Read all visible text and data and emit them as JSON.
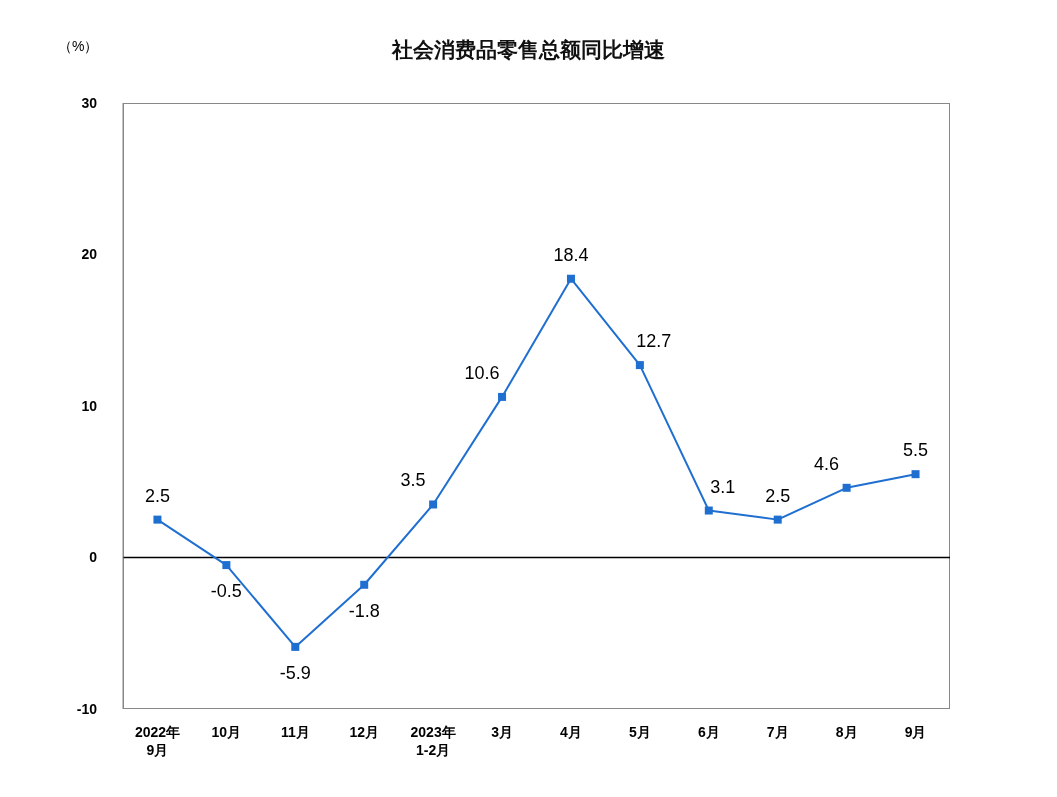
{
  "chart_data": {
    "type": "line",
    "title": "社会消费品零售总额同比增速",
    "ylabel": "（%）",
    "categories": [
      "2022年\n9月",
      "10月",
      "11月",
      "12月",
      "2023年\n1-2月",
      "3月",
      "4月",
      "5月",
      "6月",
      "7月",
      "8月",
      "9月"
    ],
    "series": [
      {
        "color": "#1f6fd1",
        "values": [
          2.5,
          -0.5,
          -5.9,
          -1.8,
          3.5,
          10.6,
          18.4,
          12.7,
          3.1,
          2.5,
          4.6,
          5.5
        ]
      }
    ],
    "ylim": [
      -10,
      30
    ],
    "yticks": [
      -10,
      0,
      10,
      20,
      30
    ],
    "legend": false,
    "marker": "square",
    "line_style": "solid",
    "data_labels": true
  }
}
